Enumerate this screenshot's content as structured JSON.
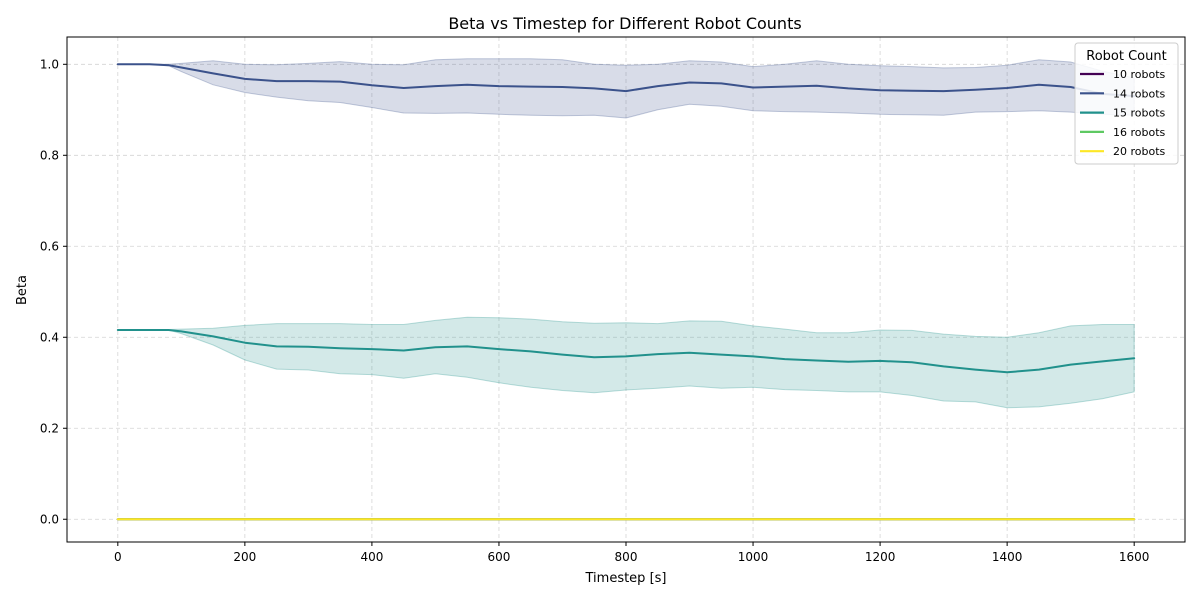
{
  "chart_data": {
    "type": "line",
    "title": "Beta vs Timestep for Different Robot Counts",
    "xlabel": "Timestep [s]",
    "ylabel": "Beta",
    "xlim": [
      -80,
      1680
    ],
    "ylim": [
      -0.05,
      1.06
    ],
    "xticks": [
      0,
      200,
      400,
      600,
      800,
      1000,
      1200,
      1400,
      1600
    ],
    "yticks": [
      0.0,
      0.2,
      0.4,
      0.6,
      0.8,
      1.0
    ],
    "ytick_labels": [
      "0.0",
      "0.2",
      "0.4",
      "0.6",
      "0.8",
      "1.0"
    ],
    "grid": true,
    "legend": {
      "title": "Robot Count",
      "placement": "top-right"
    },
    "x": [
      0,
      50,
      80,
      100,
      150,
      200,
      250,
      300,
      350,
      400,
      450,
      500,
      550,
      600,
      650,
      700,
      750,
      800,
      850,
      900,
      950,
      1000,
      1050,
      1100,
      1150,
      1200,
      1250,
      1300,
      1350,
      1400,
      1450,
      1500,
      1550,
      1600
    ],
    "series": [
      {
        "name": "10 robots",
        "color": "#440154",
        "values": [
          0,
          0,
          0,
          0,
          0,
          0,
          0,
          0,
          0,
          0,
          0,
          0,
          0,
          0,
          0,
          0,
          0,
          0,
          0,
          0,
          0,
          0,
          0,
          0,
          0,
          0,
          0,
          0,
          0,
          0,
          0,
          0,
          0,
          0
        ]
      },
      {
        "name": "14 robots",
        "color": "#3b528b",
        "values": [
          1.0,
          1.0,
          0.998,
          0.993,
          0.98,
          0.968,
          0.963,
          0.963,
          0.962,
          0.954,
          0.948,
          0.952,
          0.955,
          0.952,
          0.951,
          0.95,
          0.947,
          0.941,
          0.952,
          0.96,
          0.958,
          0.949,
          0.951,
          0.953,
          0.947,
          0.943,
          0.942,
          0.941,
          0.944,
          0.948,
          0.955,
          0.95,
          0.935,
          0.93
        ],
        "band_upper": [
          1.0,
          1.0,
          1.0,
          1.002,
          1.008,
          1.0,
          0.999,
          1.002,
          1.006,
          1.0,
          0.999,
          1.01,
          1.012,
          1.012,
          1.012,
          1.01,
          1.0,
          0.998,
          1.0,
          1.008,
          1.005,
          0.995,
          1.0,
          1.008,
          1.0,
          0.997,
          0.995,
          0.992,
          0.993,
          0.998,
          1.01,
          1.005,
          0.985,
          0.97
        ],
        "band_lower": [
          1.0,
          1.0,
          0.997,
          0.984,
          0.955,
          0.938,
          0.928,
          0.92,
          0.916,
          0.905,
          0.893,
          0.892,
          0.893,
          0.89,
          0.888,
          0.887,
          0.888,
          0.882,
          0.9,
          0.912,
          0.908,
          0.898,
          0.896,
          0.895,
          0.893,
          0.89,
          0.889,
          0.888,
          0.895,
          0.896,
          0.898,
          0.895,
          0.89,
          0.888
        ]
      },
      {
        "name": "15 robots",
        "color": "#21918c",
        "values": [
          0.416,
          0.416,
          0.416,
          0.413,
          0.402,
          0.388,
          0.38,
          0.379,
          0.376,
          0.374,
          0.371,
          0.378,
          0.38,
          0.374,
          0.369,
          0.362,
          0.356,
          0.358,
          0.363,
          0.366,
          0.362,
          0.358,
          0.352,
          0.349,
          0.346,
          0.348,
          0.345,
          0.336,
          0.329,
          0.323,
          0.329,
          0.34,
          0.347,
          0.354
        ],
        "band_upper": [
          0.416,
          0.416,
          0.417,
          0.418,
          0.42,
          0.426,
          0.43,
          0.43,
          0.43,
          0.428,
          0.428,
          0.437,
          0.444,
          0.443,
          0.44,
          0.434,
          0.431,
          0.432,
          0.43,
          0.436,
          0.435,
          0.425,
          0.418,
          0.41,
          0.41,
          0.416,
          0.415,
          0.407,
          0.402,
          0.4,
          0.41,
          0.425,
          0.428,
          0.428
        ],
        "band_lower": [
          0.416,
          0.416,
          0.416,
          0.408,
          0.383,
          0.35,
          0.33,
          0.328,
          0.32,
          0.318,
          0.31,
          0.32,
          0.312,
          0.3,
          0.29,
          0.283,
          0.278,
          0.284,
          0.288,
          0.293,
          0.288,
          0.29,
          0.285,
          0.283,
          0.28,
          0.28,
          0.272,
          0.26,
          0.258,
          0.245,
          0.247,
          0.255,
          0.265,
          0.28
        ]
      },
      {
        "name": "16 robots",
        "color": "#5ec962",
        "values": [
          0,
          0,
          0,
          0,
          0,
          0,
          0,
          0,
          0,
          0,
          0,
          0,
          0,
          0,
          0,
          0,
          0,
          0,
          0,
          0,
          0,
          0,
          0,
          0,
          0,
          0,
          0,
          0,
          0,
          0,
          0,
          0,
          0,
          0
        ]
      },
      {
        "name": "20 robots",
        "color": "#fde725",
        "values": [
          0,
          0,
          0,
          0,
          0,
          0,
          0,
          0,
          0,
          0,
          0,
          0,
          0,
          0,
          0,
          0,
          0,
          0,
          0,
          0,
          0,
          0,
          0,
          0,
          0,
          0,
          0,
          0,
          0,
          0,
          0,
          0,
          0,
          0
        ]
      }
    ]
  }
}
